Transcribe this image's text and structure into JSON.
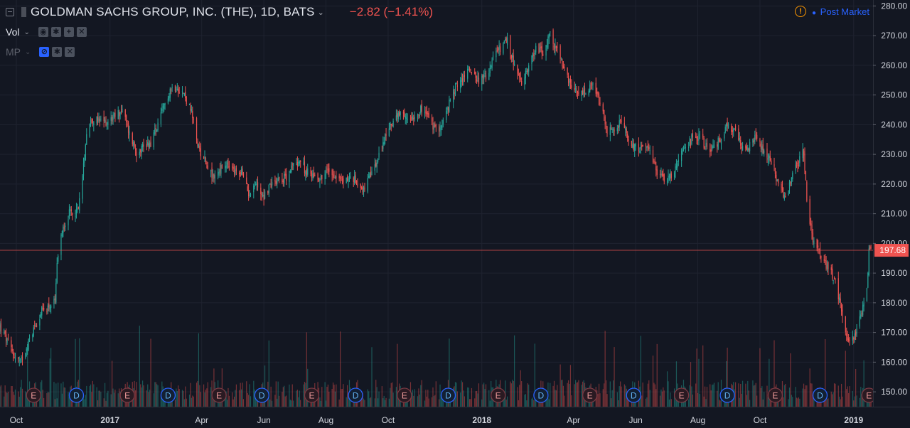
{
  "header": {
    "title": "GOLDMAN SACHS GROUP, INC. (THE), 1D, BATS",
    "change": "−2.82 (−1.41%)",
    "post_market": "Post Market",
    "warning_glyph": "!"
  },
  "indicators": [
    {
      "label": "Vol",
      "buttons": [
        "eye-icon",
        "gear-icon",
        "plus-icon",
        "close-icon"
      ]
    },
    {
      "label": "MP",
      "buttons": [
        "eye-off-icon",
        "gear-icon",
        "close-icon"
      ]
    }
  ],
  "colors": {
    "background": "#131722",
    "up": "#26a69a",
    "down": "#ef5350",
    "grid": "#1f2330",
    "axis_text": "#d1d4dc",
    "last_price_label": "#ef5350"
  },
  "chart_data": {
    "type": "candlestick",
    "title": "GOLDMAN SACHS GROUP, INC. (THE), 1D, BATS",
    "y_axis": {
      "ticks": [
        150,
        160,
        170,
        180,
        190,
        200,
        210,
        220,
        230,
        240,
        250,
        260,
        270,
        280
      ],
      "tick_labels": [
        "150.00",
        "160.00",
        "170.00",
        "180.00",
        "190.00",
        "200.00",
        "210.00",
        "220.00",
        "230.00",
        "240.00",
        "250.00",
        "260.00",
        "270.00",
        "280.00"
      ],
      "range": [
        145,
        282
      ]
    },
    "x_axis": {
      "range": [
        "2016-09-15",
        "2019-01-20"
      ],
      "tick_labels": [
        {
          "label": "Oct",
          "date": "2016-10-01",
          "bold": false
        },
        {
          "label": "2017",
          "date": "2017-01-01",
          "bold": true
        },
        {
          "label": "Apr",
          "date": "2017-04-01",
          "bold": false
        },
        {
          "label": "Jun",
          "date": "2017-06-01",
          "bold": false
        },
        {
          "label": "Aug",
          "date": "2017-08-01",
          "bold": false
        },
        {
          "label": "Oct",
          "date": "2017-10-01",
          "bold": false
        },
        {
          "label": "2018",
          "date": "2018-01-01",
          "bold": true
        },
        {
          "label": "Apr",
          "date": "2018-04-01",
          "bold": false
        },
        {
          "label": "Jun",
          "date": "2018-06-01",
          "bold": false
        },
        {
          "label": "Aug",
          "date": "2018-08-01",
          "bold": false
        },
        {
          "label": "Oct",
          "date": "2018-10-01",
          "bold": false
        },
        {
          "label": "2019",
          "date": "2019-01-01",
          "bold": true
        }
      ]
    },
    "last_price": 197.68,
    "last_price_label": "197.68",
    "price_path": [
      [
        "2016-09-15",
        172
      ],
      [
        "2016-09-22",
        167
      ],
      [
        "2016-09-29",
        162
      ],
      [
        "2016-10-05",
        160
      ],
      [
        "2016-10-12",
        166
      ],
      [
        "2016-10-19",
        172
      ],
      [
        "2016-10-26",
        177
      ],
      [
        "2016-11-02",
        179
      ],
      [
        "2016-11-08",
        180
      ],
      [
        "2016-11-10",
        192
      ],
      [
        "2016-11-15",
        205
      ],
      [
        "2016-11-22",
        210
      ],
      [
        "2016-11-30",
        211
      ],
      [
        "2016-12-05",
        222
      ],
      [
        "2016-12-09",
        238
      ],
      [
        "2016-12-14",
        242
      ],
      [
        "2016-12-21",
        241
      ],
      [
        "2016-12-29",
        241
      ],
      [
        "2017-01-06",
        243
      ],
      [
        "2017-01-13",
        245
      ],
      [
        "2017-01-20",
        237
      ],
      [
        "2017-01-27",
        231
      ],
      [
        "2017-02-03",
        233
      ],
      [
        "2017-02-10",
        234
      ],
      [
        "2017-02-17",
        240
      ],
      [
        "2017-02-24",
        247
      ],
      [
        "2017-03-01",
        252
      ],
      [
        "2017-03-08",
        253
      ],
      [
        "2017-03-15",
        250
      ],
      [
        "2017-03-22",
        244
      ],
      [
        "2017-03-29",
        232
      ],
      [
        "2017-04-05",
        228
      ],
      [
        "2017-04-12",
        222
      ],
      [
        "2017-04-19",
        225
      ],
      [
        "2017-04-26",
        226
      ],
      [
        "2017-05-03",
        224
      ],
      [
        "2017-05-10",
        224
      ],
      [
        "2017-05-17",
        217
      ],
      [
        "2017-05-24",
        220
      ],
      [
        "2017-06-01",
        216
      ],
      [
        "2017-06-08",
        220
      ],
      [
        "2017-06-15",
        222
      ],
      [
        "2017-06-22",
        222
      ],
      [
        "2017-06-29",
        226
      ],
      [
        "2017-07-06",
        228
      ],
      [
        "2017-07-13",
        224
      ],
      [
        "2017-07-20",
        223
      ],
      [
        "2017-07-27",
        222
      ],
      [
        "2017-08-03",
        225
      ],
      [
        "2017-08-10",
        223
      ],
      [
        "2017-08-17",
        221
      ],
      [
        "2017-08-24",
        222
      ],
      [
        "2017-08-31",
        221
      ],
      [
        "2017-09-07",
        218
      ],
      [
        "2017-09-14",
        223
      ],
      [
        "2017-09-21",
        228
      ],
      [
        "2017-09-28",
        236
      ],
      [
        "2017-10-05",
        241
      ],
      [
        "2017-10-12",
        243
      ],
      [
        "2017-10-19",
        242
      ],
      [
        "2017-10-26",
        243
      ],
      [
        "2017-11-02",
        245
      ],
      [
        "2017-11-09",
        243
      ],
      [
        "2017-11-16",
        238
      ],
      [
        "2017-11-23",
        240
      ],
      [
        "2017-11-30",
        247
      ],
      [
        "2017-12-07",
        253
      ],
      [
        "2017-12-14",
        256
      ],
      [
        "2017-12-21",
        259
      ],
      [
        "2017-12-29",
        255
      ],
      [
        "2018-01-05",
        256
      ],
      [
        "2018-01-12",
        262
      ],
      [
        "2018-01-19",
        266
      ],
      [
        "2018-01-26",
        268
      ],
      [
        "2018-02-02",
        260
      ],
      [
        "2018-02-09",
        253
      ],
      [
        "2018-02-16",
        260
      ],
      [
        "2018-02-23",
        266
      ],
      [
        "2018-03-02",
        264
      ],
      [
        "2018-03-09",
        270
      ],
      [
        "2018-03-16",
        265
      ],
      [
        "2018-03-23",
        258
      ],
      [
        "2018-03-30",
        252
      ],
      [
        "2018-04-06",
        250
      ],
      [
        "2018-04-13",
        251
      ],
      [
        "2018-04-20",
        253
      ],
      [
        "2018-04-27",
        247
      ],
      [
        "2018-05-04",
        238
      ],
      [
        "2018-05-11",
        238
      ],
      [
        "2018-05-18",
        241
      ],
      [
        "2018-05-25",
        235
      ],
      [
        "2018-06-01",
        232
      ],
      [
        "2018-06-08",
        233
      ],
      [
        "2018-06-15",
        230
      ],
      [
        "2018-06-22",
        224
      ],
      [
        "2018-06-29",
        222
      ],
      [
        "2018-07-06",
        223
      ],
      [
        "2018-07-13",
        228
      ],
      [
        "2018-07-20",
        232
      ],
      [
        "2018-07-27",
        236
      ],
      [
        "2018-08-03",
        236
      ],
      [
        "2018-08-10",
        232
      ],
      [
        "2018-08-17",
        232
      ],
      [
        "2018-08-24",
        236
      ],
      [
        "2018-08-31",
        240
      ],
      [
        "2018-09-07",
        237
      ],
      [
        "2018-09-14",
        232
      ],
      [
        "2018-09-21",
        233
      ],
      [
        "2018-09-28",
        236
      ],
      [
        "2018-10-05",
        231
      ],
      [
        "2018-10-12",
        228
      ],
      [
        "2018-10-19",
        220
      ],
      [
        "2018-10-26",
        215
      ],
      [
        "2018-11-02",
        223
      ],
      [
        "2018-11-09",
        228
      ],
      [
        "2018-11-13",
        231
      ],
      [
        "2018-11-16",
        215
      ],
      [
        "2018-11-21",
        202
      ],
      [
        "2018-11-28",
        198
      ],
      [
        "2018-12-05",
        192
      ],
      [
        "2018-12-12",
        189
      ],
      [
        "2018-12-19",
        180
      ],
      [
        "2018-12-24",
        170
      ],
      [
        "2018-12-28",
        166
      ],
      [
        "2019-01-03",
        170
      ],
      [
        "2019-01-08",
        175
      ],
      [
        "2019-01-10",
        178
      ],
      [
        "2019-01-14",
        186
      ],
      [
        "2019-01-16",
        197
      ],
      [
        "2019-01-18",
        200
      ]
    ],
    "earnings_markers": [
      {
        "date": "2016-10-18",
        "label": "E"
      },
      {
        "date": "2017-01-18",
        "label": "E"
      },
      {
        "date": "2017-04-18",
        "label": "E"
      },
      {
        "date": "2017-07-18",
        "label": "E"
      },
      {
        "date": "2017-10-17",
        "label": "E"
      },
      {
        "date": "2018-01-17",
        "label": "E"
      },
      {
        "date": "2018-04-17",
        "label": "E"
      },
      {
        "date": "2018-07-16",
        "label": "E"
      },
      {
        "date": "2018-10-16",
        "label": "E"
      },
      {
        "date": "2019-01-16",
        "label": "E"
      }
    ],
    "dividend_markers": [
      {
        "date": "2016-11-29",
        "label": "D"
      },
      {
        "date": "2017-02-27",
        "label": "D"
      },
      {
        "date": "2017-05-30",
        "label": "D"
      },
      {
        "date": "2017-08-30",
        "label": "D"
      },
      {
        "date": "2017-11-29",
        "label": "D"
      },
      {
        "date": "2018-02-28",
        "label": "D"
      },
      {
        "date": "2018-05-30",
        "label": "D"
      },
      {
        "date": "2018-08-30",
        "label": "D"
      },
      {
        "date": "2018-11-29",
        "label": "D"
      }
    ]
  }
}
